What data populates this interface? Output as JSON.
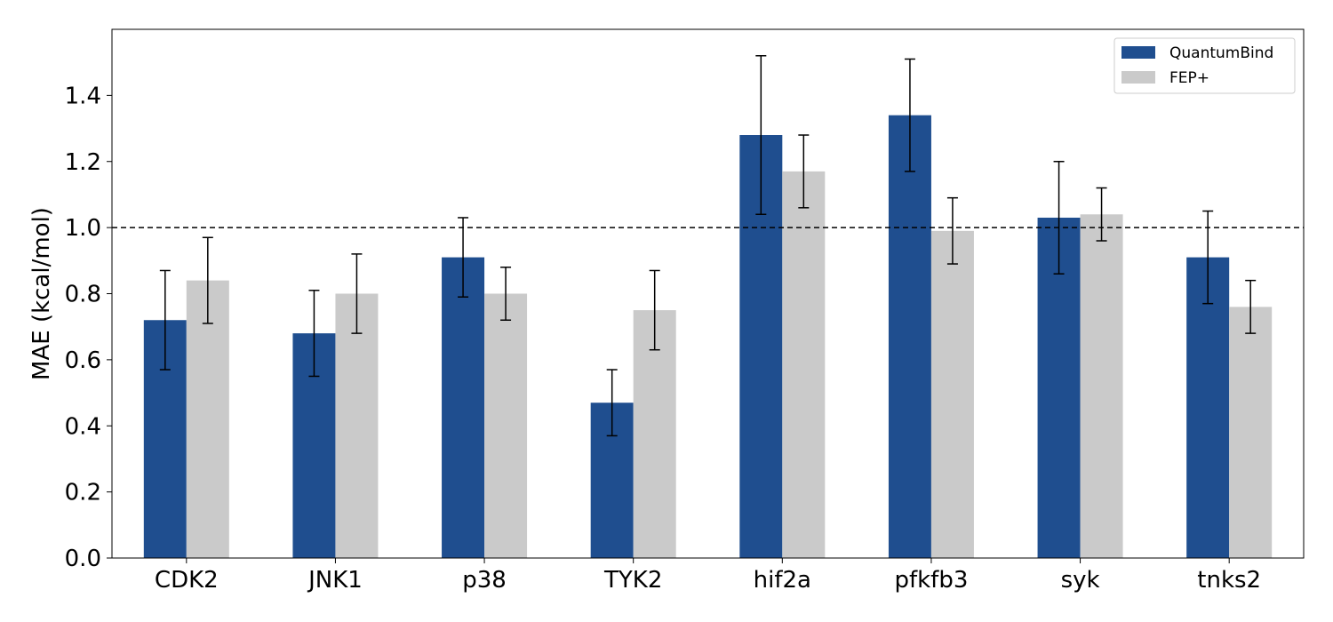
{
  "chart_data": {
    "type": "bar",
    "title": "",
    "xlabel": "",
    "ylabel": "MAE (kcal/mol)",
    "ylim": [
      0,
      1.6
    ],
    "yticks": [
      "0.0",
      "0.2",
      "0.4",
      "0.6",
      "0.8",
      "1.0",
      "1.2",
      "1.4"
    ],
    "categories": [
      "CDK2",
      "JNK1",
      "p38",
      "TYK2",
      "hif2a",
      "pfkfb3",
      "syk",
      "tnks2"
    ],
    "series": [
      {
        "name": "QuantumBind",
        "color": "#1f4e8f",
        "values": [
          0.72,
          0.68,
          0.91,
          0.47,
          1.28,
          1.34,
          1.03,
          0.91
        ],
        "err_low": [
          0.57,
          0.55,
          0.79,
          0.37,
          1.04,
          1.17,
          0.86,
          0.77
        ],
        "err_high": [
          0.87,
          0.81,
          1.03,
          0.57,
          1.52,
          1.51,
          1.2,
          1.05
        ]
      },
      {
        "name": "FEP+",
        "color": "#cacaca",
        "values": [
          0.84,
          0.8,
          0.8,
          0.75,
          1.17,
          0.99,
          1.04,
          0.76
        ],
        "err_low": [
          0.71,
          0.68,
          0.72,
          0.63,
          1.06,
          0.89,
          0.96,
          0.68
        ],
        "err_high": [
          0.97,
          0.92,
          0.88,
          0.87,
          1.28,
          1.09,
          1.12,
          0.84
        ]
      }
    ],
    "reference_line": {
      "y": 1.0,
      "style": "dashed",
      "color": "#000000"
    },
    "grid": false,
    "legend_position": "top-right"
  }
}
